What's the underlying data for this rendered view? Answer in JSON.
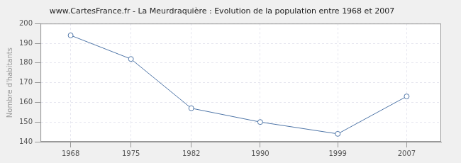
{
  "chart_data": {
    "type": "line",
    "title": "www.CartesFrance.fr - La Meurdraquière : Evolution de la population entre 1968 et 2007",
    "y_label": "Nombre d'habitants",
    "x": [
      1968,
      1975,
      1982,
      1990,
      1999,
      2007
    ],
    "values": [
      194,
      182,
      157,
      150,
      144,
      163
    ],
    "color": "#4f76a8",
    "marker": "circle",
    "xlim": [
      1964.5,
      2011
    ],
    "xticks": [
      1968,
      1975,
      1982,
      1990,
      1999,
      2007
    ],
    "ylim": [
      140,
      200
    ],
    "yticks": [
      140,
      150,
      160,
      170,
      180,
      190,
      200
    ],
    "grid": true
  }
}
